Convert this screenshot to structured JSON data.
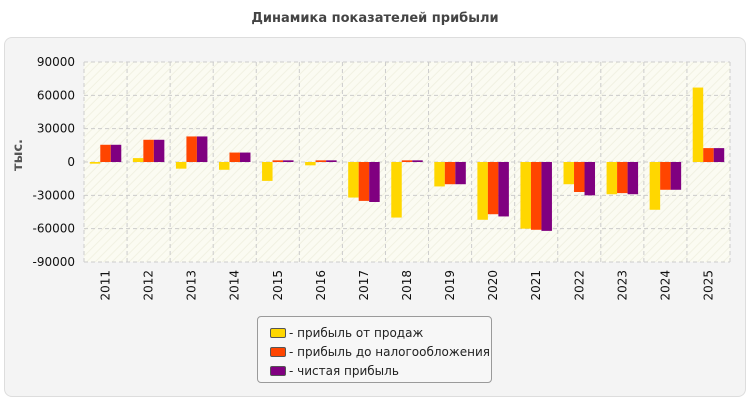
{
  "chart_data": {
    "type": "bar",
    "title": "Динамика показателей прибыли",
    "ylabel": "тыс.",
    "xlabel": "",
    "ylim": [
      -90000,
      90000
    ],
    "yticks": [
      90000,
      60000,
      30000,
      0,
      -30000,
      -60000,
      -90000
    ],
    "grid": true,
    "legend_position": "bottom",
    "categories": [
      "2011",
      "2012",
      "2013",
      "2014",
      "2015",
      "2016",
      "2017",
      "2018",
      "2019",
      "2020",
      "2021",
      "2022",
      "2023",
      "2024",
      "2025"
    ],
    "series": [
      {
        "name": "- прибыль от продаж",
        "color": "#ffd700",
        "values": [
          -1500,
          3500,
          -6000,
          -7000,
          -17000,
          -3000,
          -32000,
          -50000,
          -22000,
          -52000,
          -60000,
          -20000,
          -29000,
          -43000,
          67000
        ]
      },
      {
        "name": "- прибыль до налогообложения",
        "color": "#ff4500",
        "values": [
          15500,
          20000,
          23000,
          8500,
          1500,
          1500,
          -35000,
          1500,
          -20000,
          -47000,
          -61000,
          -27000,
          -28000,
          -25000,
          12500
        ]
      },
      {
        "name": "- чистая прибыль",
        "color": "#800080",
        "values": [
          15500,
          20000,
          23000,
          8500,
          1500,
          1500,
          -36000,
          1500,
          -20000,
          -49000,
          -62000,
          -30000,
          -29000,
          -25000,
          12500
        ]
      }
    ]
  }
}
